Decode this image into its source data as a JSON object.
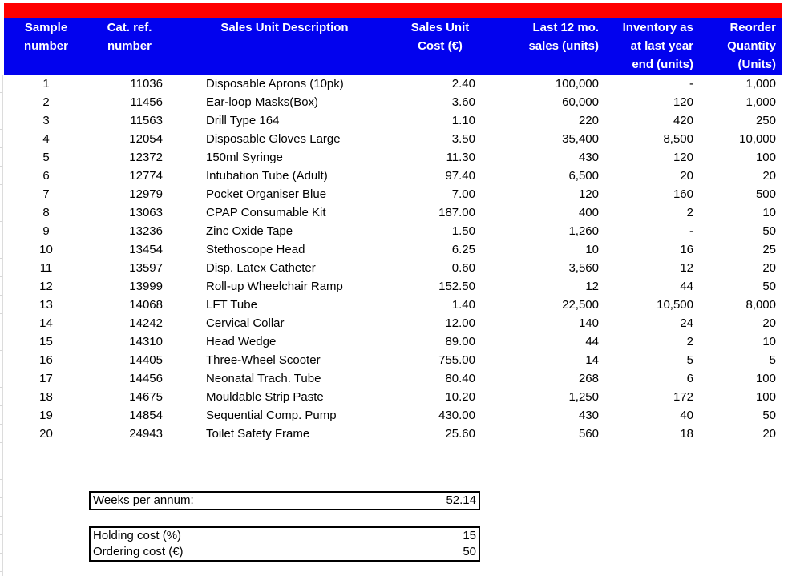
{
  "colors": {
    "banner_red": "#fe0000",
    "header_blue": "#0202ee",
    "header_text": "#ffffff",
    "gridline_gray": "#d8d8d8"
  },
  "table": {
    "columns": [
      {
        "label": "Sample\nnumber"
      },
      {
        "label": "Cat. ref.\nnumber"
      },
      {
        "label": "Sales Unit Description"
      },
      {
        "label": "Sales Unit\nCost (€)"
      },
      {
        "label": "Last 12 mo.\nsales (units)"
      },
      {
        "label": "Inventory as\nat last year\nend (units)"
      },
      {
        "label": "Reorder\nQuantity\n(Units)"
      }
    ],
    "rows": [
      [
        "1",
        "11036",
        "Disposable Aprons (10pk)",
        "2.40",
        "100,000",
        "-",
        "1,000"
      ],
      [
        "2",
        "11456",
        "Ear-loop Masks(Box)",
        "3.60",
        "60,000",
        "120",
        "1,000"
      ],
      [
        "3",
        "11563",
        "Drill Type 164",
        "1.10",
        "220",
        "420",
        "250"
      ],
      [
        "4",
        "12054",
        "Disposable Gloves Large",
        "3.50",
        "35,400",
        "8,500",
        "10,000"
      ],
      [
        "5",
        "12372",
        "150ml Syringe",
        "11.30",
        "430",
        "120",
        "100"
      ],
      [
        "6",
        "12774",
        "Intubation Tube (Adult)",
        "97.40",
        "6,500",
        "20",
        "20"
      ],
      [
        "7",
        "12979",
        "Pocket Organiser Blue",
        "7.00",
        "120",
        "160",
        "500"
      ],
      [
        "8",
        "13063",
        "CPAP Consumable Kit",
        "187.00",
        "400",
        "2",
        "10"
      ],
      [
        "9",
        "13236",
        "Zinc Oxide Tape",
        "1.50",
        "1,260",
        "-",
        "50"
      ],
      [
        "10",
        "13454",
        "Stethoscope Head",
        "6.25",
        "10",
        "16",
        "25"
      ],
      [
        "11",
        "13597",
        "Disp. Latex Catheter",
        "0.60",
        "3,560",
        "12",
        "20"
      ],
      [
        "12",
        "13999",
        "Roll-up Wheelchair Ramp",
        "152.50",
        "12",
        "44",
        "50"
      ],
      [
        "13",
        "14068",
        "LFT Tube",
        "1.40",
        "22,500",
        "10,500",
        "8,000"
      ],
      [
        "14",
        "14242",
        "Cervical Collar",
        "12.00",
        "140",
        "24",
        "20"
      ],
      [
        "15",
        "14310",
        "Head Wedge",
        "89.00",
        "44",
        "2",
        "10"
      ],
      [
        "16",
        "14405",
        "Three-Wheel Scooter",
        "755.00",
        "14",
        "5",
        "5"
      ],
      [
        "17",
        "14456",
        "Neonatal Trach. Tube",
        "80.40",
        "268",
        "6",
        "100"
      ],
      [
        "18",
        "14675",
        "Mouldable Strip Paste",
        "10.20",
        "1,250",
        "172",
        "100"
      ],
      [
        "19",
        "14854",
        "Sequential Comp. Pump",
        "430.00",
        "430",
        "40",
        "50"
      ],
      [
        "20",
        "24943",
        "Toilet Safety Frame",
        "25.60",
        "560",
        "18",
        "20"
      ]
    ]
  },
  "params": {
    "weeks": {
      "label": "Weeks per annum:",
      "value": "52.14"
    },
    "holding": {
      "label": "Holding cost (%)",
      "value": "15"
    },
    "ordering": {
      "label": "Ordering cost (€)",
      "value": "50"
    }
  }
}
